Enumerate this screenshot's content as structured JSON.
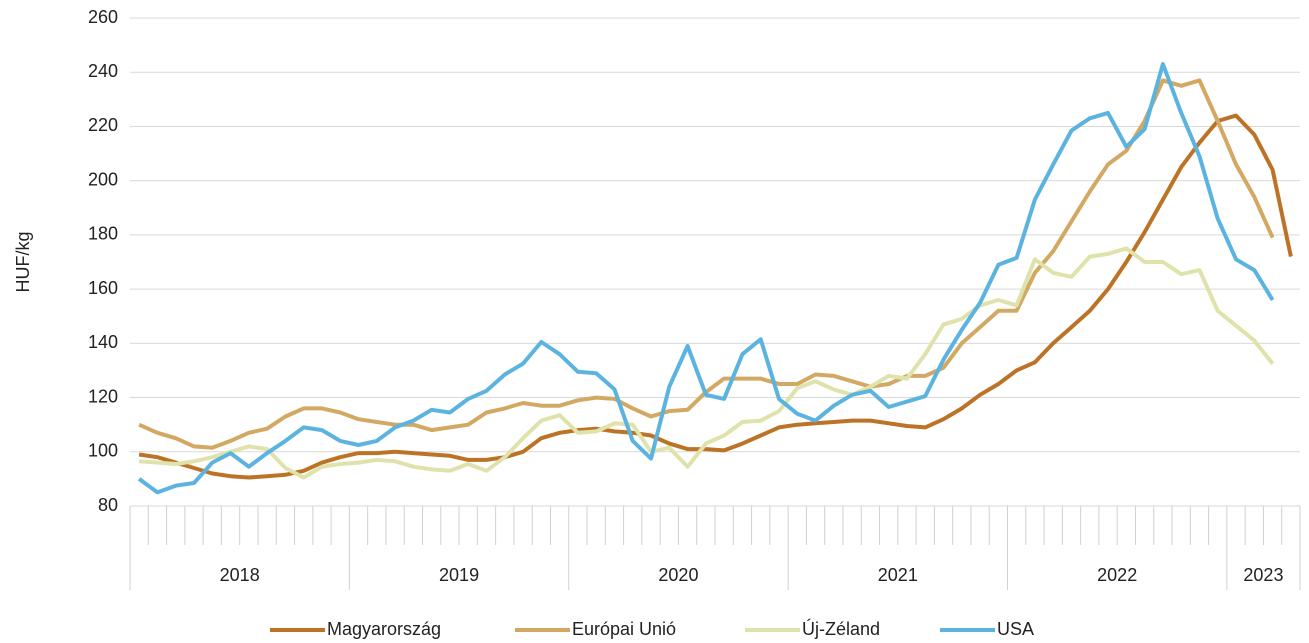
{
  "chart_data": {
    "type": "line",
    "axis_label": "HUF/kg",
    "categories": [
      "2018",
      null,
      null,
      null,
      null,
      null,
      null,
      null,
      null,
      null,
      null,
      null,
      "2019",
      null,
      null,
      null,
      null,
      null,
      null,
      null,
      null,
      null,
      null,
      null,
      "2020",
      null,
      null,
      null,
      null,
      null,
      null,
      null,
      null,
      null,
      null,
      null,
      "2021",
      null,
      null,
      null,
      null,
      null,
      null,
      null,
      null,
      null,
      null,
      null,
      "2022",
      null,
      null,
      null,
      null,
      null,
      null,
      null,
      null,
      null,
      null,
      null,
      "2023",
      null,
      null,
      null
    ],
    "ylim": [
      80,
      260
    ],
    "yticks": [
      80,
      100,
      120,
      140,
      160,
      180,
      200,
      220,
      240,
      260
    ],
    "grid": true,
    "legend": "bottom",
    "series": [
      {
        "name": "Magyarország",
        "color": "#bd7326",
        "values": [
          99,
          98,
          96,
          94,
          92,
          91,
          90.5,
          91,
          91.5,
          93,
          96,
          98,
          99.5,
          99.5,
          100,
          99.5,
          99,
          98.5,
          97,
          97,
          98,
          100,
          105,
          107,
          108,
          108.5,
          107.5,
          107,
          106,
          103,
          101,
          101,
          100.5,
          103,
          106,
          109,
          110,
          110.5,
          111,
          111.5,
          111.5,
          110.5,
          109.5,
          109,
          112,
          116,
          121,
          125,
          130,
          133,
          140,
          146,
          152,
          160,
          170,
          181,
          193,
          205,
          214,
          222,
          224,
          217,
          204,
          172
        ]
      },
      {
        "name": "Európai Unió",
        "color": "#d3a863",
        "values": [
          110,
          107,
          105,
          102,
          101.5,
          104,
          107,
          108.5,
          113,
          116,
          116,
          114.5,
          112,
          111,
          110,
          110,
          108,
          109,
          110,
          114.5,
          116,
          118,
          117,
          117,
          119,
          120,
          119.5,
          116,
          113,
          115,
          115.5,
          122,
          127,
          127,
          127,
          125,
          125,
          128.5,
          128,
          126,
          124,
          125,
          128,
          128,
          131,
          140,
          146,
          152,
          152,
          166,
          174,
          185,
          196,
          206,
          211,
          222,
          237,
          235,
          237,
          222,
          206,
          194,
          179,
          null
        ]
      },
      {
        "name": "Új-Zéland",
        "color": "#dfe3ab",
        "values": [
          96.5,
          96,
          95.5,
          96.5,
          98,
          100,
          102,
          101,
          94,
          90.5,
          94.5,
          95.5,
          96,
          97,
          96.5,
          94.5,
          93.5,
          93,
          95.5,
          93,
          98,
          105,
          111.5,
          113.5,
          107,
          107.5,
          110.5,
          110,
          100,
          101.5,
          94.5,
          103,
          106,
          111,
          111.5,
          115,
          123.5,
          126,
          123,
          121,
          124,
          128,
          127,
          136,
          147,
          149,
          154,
          156,
          154,
          171,
          166,
          164.5,
          172,
          173,
          175,
          170,
          170,
          165.5,
          167,
          152,
          146.5,
          141,
          132.5,
          null
        ]
      },
      {
        "name": "USA",
        "color": "#5bb3df",
        "values": [
          90,
          85,
          87.5,
          88.5,
          96,
          99.5,
          94.5,
          99.5,
          104,
          109,
          108,
          104,
          102.5,
          104,
          109,
          111.5,
          115.5,
          114.5,
          119.5,
          122.5,
          128.5,
          132.5,
          140.5,
          136,
          129.5,
          129,
          123,
          104,
          97.5,
          124,
          139,
          121,
          119.5,
          136,
          141.5,
          119.5,
          114,
          111.5,
          117,
          121,
          122.5,
          116.5,
          118.5,
          120.5,
          134,
          145,
          155,
          169,
          171.5,
          193,
          206,
          218.5,
          223,
          225,
          212.5,
          219,
          243,
          225,
          209,
          186,
          171,
          167,
          156,
          null
        ]
      }
    ]
  }
}
